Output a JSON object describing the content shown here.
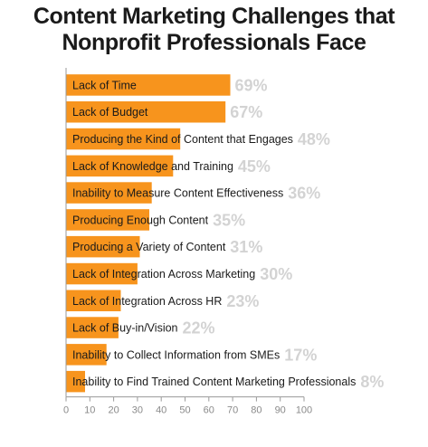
{
  "title_lines": [
    "Content Marketing Challenges that",
    "Nonprofit Professionals Face"
  ],
  "colors": {
    "bar": "#F7941D",
    "value_label": "#D3D3D3",
    "category_text": "#1a1a1a",
    "axis": "#9a9a9a",
    "tick_text": "#8a8a8a"
  },
  "chart_data": {
    "type": "bar",
    "orientation": "horizontal",
    "title": "Content Marketing Challenges that Nonprofit Professionals Face",
    "categories": [
      "Lack of Time",
      "Lack of Budget",
      "Producing the Kind of Content that Engages",
      "Lack of Knowledge and Training",
      "Inability to Measure Content Effectiveness",
      "Producing Enough Content",
      "Producing a Variety of Content",
      "Lack of Integration Across Marketing",
      "Lack of Integration Across HR",
      "Lack of Buy-in/Vision",
      "Inability to Collect Information from SMEs",
      "Inability to Find Trained Content Marketing Professionals"
    ],
    "values": [
      69,
      67,
      48,
      45,
      36,
      35,
      31,
      30,
      23,
      22,
      17,
      8
    ],
    "value_labels": [
      "69%",
      "67%",
      "48%",
      "45%",
      "36%",
      "35%",
      "31%",
      "30%",
      "23%",
      "22%",
      "17%",
      "8%"
    ],
    "xlim": [
      0,
      100
    ],
    "xticks": [
      0,
      10,
      20,
      30,
      40,
      50,
      60,
      70,
      80,
      90,
      100
    ],
    "xlabel": "",
    "ylabel": "",
    "grid": false,
    "legend": "none"
  }
}
